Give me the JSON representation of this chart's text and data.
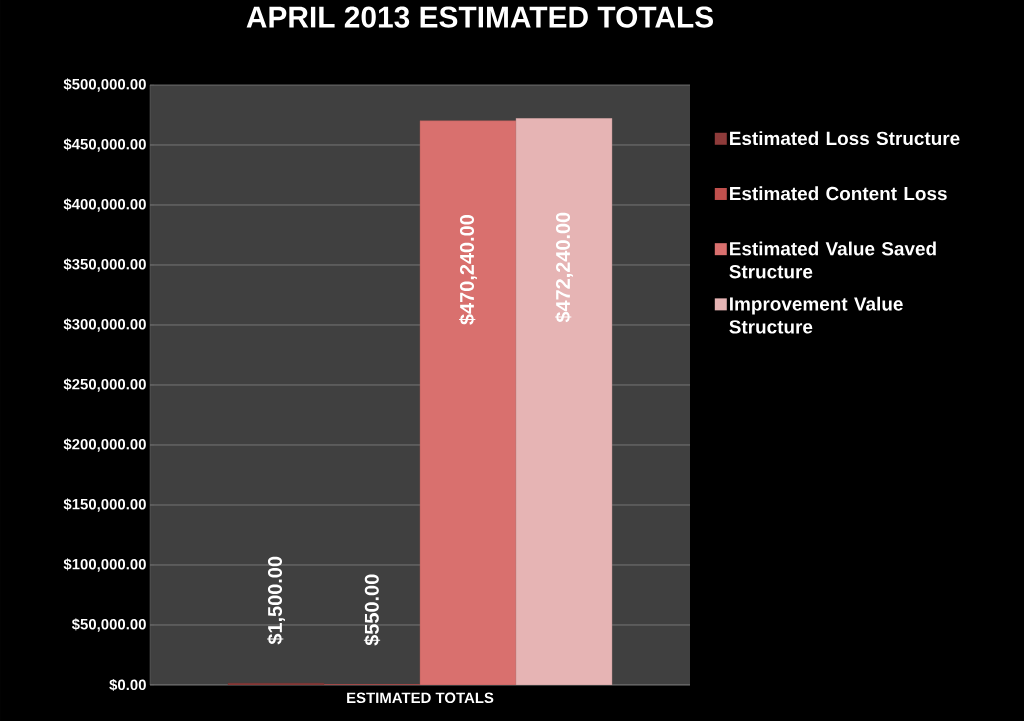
{
  "chart_data": {
    "type": "bar",
    "title": "APRIL 2013 ESTIMATED TOTALS",
    "categories": [
      "ESTIMATED TOTALS"
    ],
    "series": [
      {
        "name": "Estimated Loss Structure",
        "color": "#8e3b3a",
        "values": [
          1500
        ],
        "value_labels": [
          "$1,500.00"
        ]
      },
      {
        "name": "Estimated Content Loss",
        "color": "#c0504d",
        "values": [
          550
        ],
        "value_labels": [
          "$550.00"
        ]
      },
      {
        "name": "Estimated Value Saved Structure",
        "color": "#d9706e",
        "values": [
          470240
        ],
        "value_labels": [
          "$470,240.00"
        ]
      },
      {
        "name": "Improvement Value Structure",
        "color": "#e6b4b4",
        "values": [
          472240
        ],
        "value_labels": [
          "$472,240.00"
        ]
      }
    ],
    "ylim": [
      0,
      500000
    ],
    "yticks": [
      {
        "value": 0,
        "label": "$0.00"
      },
      {
        "value": 50000,
        "label": "$50,000.00"
      },
      {
        "value": 100000,
        "label": "$100,000.00"
      },
      {
        "value": 150000,
        "label": "$150,000.00"
      },
      {
        "value": 200000,
        "label": "$200,000.00"
      },
      {
        "value": 250000,
        "label": "$250,000.00"
      },
      {
        "value": 300000,
        "label": "$300,000.00"
      },
      {
        "value": 350000,
        "label": "$350,000.00"
      },
      {
        "value": 400000,
        "label": "$400,000.00"
      },
      {
        "value": 450000,
        "label": "$450,000.00"
      },
      {
        "value": 500000,
        "label": "$500,000.00"
      }
    ],
    "grid": "y",
    "legend": "right"
  }
}
